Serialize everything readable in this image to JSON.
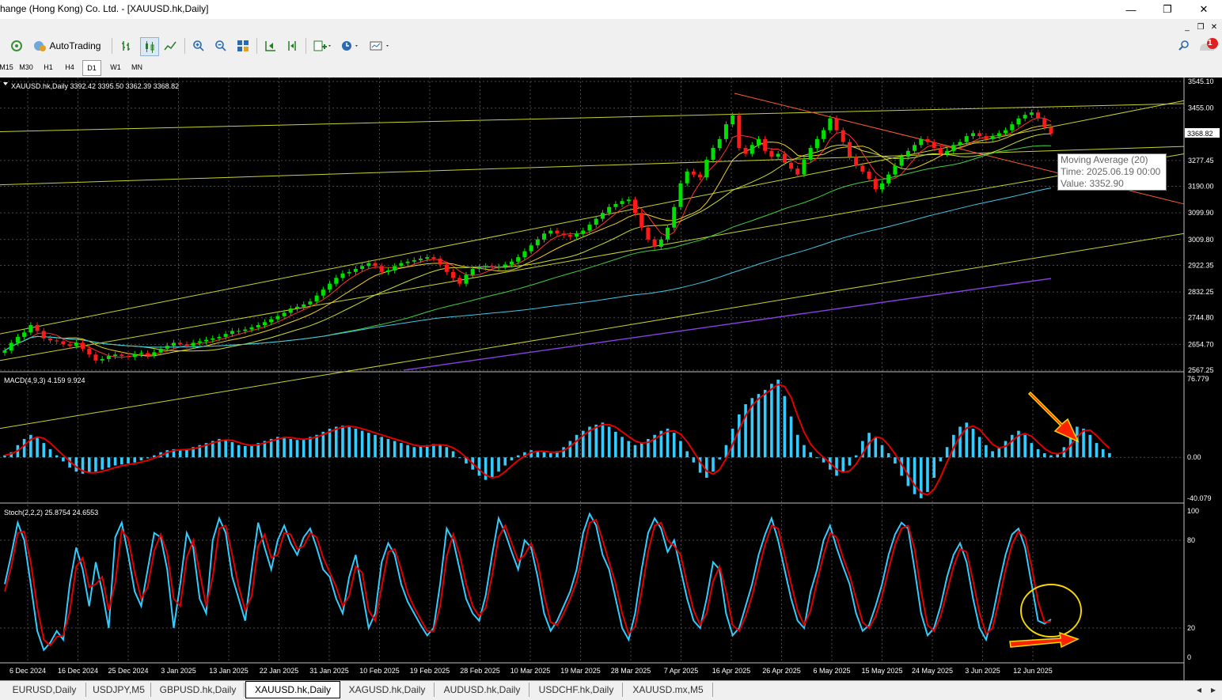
{
  "window": {
    "title": "hange (Hong Kong) Co. Ltd. - [XAUUSD.hk,Daily]",
    "minimize": "—",
    "maximize": "❐",
    "close": "✕",
    "mdi_minimize": "_",
    "mdi_restore": "❐",
    "mdi_close": "✕",
    "notification_count": "1"
  },
  "toolbar": {
    "autotrading_label": "AutoTrading"
  },
  "timeframes": [
    "M15",
    "M30",
    "H1",
    "H4",
    "D1",
    "W1",
    "MN"
  ],
  "active_timeframe": "D1",
  "main_chart": {
    "header": "XAUUSD.hk,Daily  3392.42 3395.50 3362.39 3368.82",
    "current_price": "3368.82",
    "price_axis": [
      "3545.10",
      "3455.00",
      "3277.45",
      "3190.00",
      "3099.90",
      "3009.80",
      "2922.35",
      "2832.25",
      "2744.80",
      "2654.70",
      "2567.25"
    ]
  },
  "tooltip": {
    "line1": "Moving Average (20)",
    "line2": "Time: 2025.06.19 00:00",
    "line3": "Value: 3352.90"
  },
  "macd": {
    "header": "MACD(4,9,3) 4.159 9.924",
    "axis": [
      "76.779",
      "0.00",
      "-40.079"
    ]
  },
  "stoch": {
    "header": "Stoch(2,2,2) 25.8754 24.6553",
    "axis": [
      "100",
      "80",
      "20",
      "0"
    ]
  },
  "date_axis": [
    "6 Dec 2024",
    "16 Dec 2024",
    "25 Dec 2024",
    "3 Jan 2025",
    "13 Jan 2025",
    "22 Jan 2025",
    "31 Jan 2025",
    "10 Feb 2025",
    "19 Feb 2025",
    "28 Feb 2025",
    "10 Mar 2025",
    "19 Mar 2025",
    "28 Mar 2025",
    "7 Apr 2025",
    "16 Apr 2025",
    "26 Apr 2025",
    "6 May 2025",
    "15 May 2025",
    "24 May 2025",
    "3 Jun 2025",
    "12 Jun 2025"
  ],
  "tabs": [
    "EURUSD,Daily",
    "USDJPY,M5",
    "GBPUSD.hk,Daily",
    "XAUUSD.hk,Daily",
    "XAGUSD.hk,Daily",
    "AUDUSD.hk,Daily",
    "USDCHF.hk,Daily",
    "XAUUSD.mx,M5"
  ],
  "active_tab": "XAUUSD.hk,Daily",
  "colors": {
    "background": "#000000",
    "bull_candle": "#00e000",
    "bear_candle": "#ff1a1a",
    "macd_hist": "#33ccff",
    "macd_signal": "#e00000",
    "stoch_main": "#33ccff",
    "stoch_signal": "#e00000",
    "annotation_arrow": "#ff2200",
    "annotation_circle": "#f5d800"
  },
  "chart_data": [
    {
      "type": "candlestick",
      "title": "XAUUSD.hk,Daily",
      "ohlc_last": {
        "open": 3392.42,
        "high": 3395.5,
        "low": 3362.39,
        "close": 3368.82
      },
      "ylim": [
        2567.25,
        3545.1
      ],
      "x_range": [
        "6 Dec 2024",
        "19 Jun 2025"
      ],
      "close": [
        2634,
        2660,
        2680,
        2695,
        2720,
        2700,
        2675,
        2668,
        2665,
        2655,
        2650,
        2660,
        2640,
        2620,
        2600,
        2605,
        2615,
        2620,
        2615,
        2612,
        2622,
        2625,
        2618,
        2628,
        2640,
        2650,
        2660,
        2655,
        2650,
        2660,
        2665,
        2670,
        2675,
        2680,
        2690,
        2700,
        2700,
        2705,
        2712,
        2720,
        2730,
        2740,
        2750,
        2762,
        2776,
        2782,
        2790,
        2800,
        2820,
        2840,
        2860,
        2880,
        2895,
        2900,
        2910,
        2920,
        2930,
        2920,
        2900,
        2905,
        2920,
        2930,
        2935,
        2940,
        2945,
        2950,
        2945,
        2925,
        2900,
        2880,
        2860,
        2890,
        2910,
        2915,
        2920,
        2915,
        2918,
        2925,
        2935,
        2950,
        2970,
        2990,
        3010,
        3030,
        3040,
        3030,
        3025,
        3020,
        3030,
        3040,
        3060,
        3080,
        3100,
        3120,
        3130,
        3140,
        3145,
        3100,
        3050,
        3010,
        2985,
        3010,
        3050,
        3120,
        3200,
        3240,
        3230,
        3220,
        3280,
        3320,
        3350,
        3400,
        3430,
        3320,
        3300,
        3330,
        3350,
        3310,
        3290,
        3300,
        3270,
        3250,
        3230,
        3280,
        3320,
        3350,
        3380,
        3420,
        3380,
        3340,
        3290,
        3260,
        3240,
        3215,
        3180,
        3200,
        3230,
        3260,
        3290,
        3310,
        3330,
        3350,
        3340,
        3320,
        3300,
        3310,
        3330,
        3340,
        3360,
        3370,
        3360,
        3350,
        3360,
        3370,
        3380,
        3400,
        3420,
        3432,
        3440,
        3420,
        3390,
        3368.82
      ],
      "moving_averages": [
        {
          "name": "Moving Average (20)",
          "last_value": 3352.9
        }
      ]
    },
    {
      "type": "bar",
      "title": "MACD(4,9,3) 4.159 9.924",
      "ylim": [
        -40.079,
        76.779
      ],
      "values": [
        2,
        5,
        12,
        18,
        22,
        20,
        14,
        8,
        2,
        -4,
        -10,
        -14,
        -16,
        -15,
        -14,
        -12,
        -10,
        -8,
        -7,
        -6,
        -5,
        -3,
        -1,
        2,
        5,
        7,
        8,
        7,
        8,
        10,
        12,
        14,
        16,
        18,
        17,
        15,
        12,
        11,
        12,
        14,
        16,
        18,
        20,
        20,
        18,
        17,
        18,
        20,
        22,
        25,
        28,
        30,
        31,
        30,
        28,
        26,
        24,
        22,
        20,
        18,
        16,
        14,
        12,
        10,
        11,
        12,
        13,
        12,
        10,
        6,
        0,
        -6,
        -12,
        -18,
        -22,
        -20,
        -14,
        -8,
        -3,
        2,
        5,
        7,
        6,
        5,
        4,
        6,
        10,
        16,
        22,
        26,
        30,
        32,
        34,
        30,
        25,
        20,
        16,
        12,
        14,
        18,
        22,
        26,
        28,
        24,
        16,
        6,
        -5,
        -15,
        -20,
        -14,
        -2,
        12,
        28,
        42,
        52,
        58,
        62,
        66,
        72,
        76,
        60,
        40,
        22,
        12,
        5,
        0,
        -5,
        -12,
        -18,
        -14,
        -8,
        2,
        16,
        24,
        20,
        12,
        4,
        -6,
        -18,
        -28,
        -36,
        -40,
        -34,
        -20,
        -4,
        10,
        22,
        30,
        34,
        28,
        20,
        12,
        6,
        10,
        16,
        22,
        26,
        22,
        14,
        8,
        4,
        2,
        4,
        10,
        20,
        30,
        28,
        22,
        14,
        8,
        4.159
      ],
      "signal_last": 9.924
    },
    {
      "type": "line",
      "title": "Stoch(2,2,2) 25.8754 24.6553",
      "ylim": [
        0,
        100
      ],
      "series": [
        {
          "name": "main",
          "values": [
            50,
            70,
            92,
            80,
            50,
            18,
            5,
            10,
            18,
            12,
            50,
            75,
            60,
            35,
            65,
            45,
            20,
            82,
            92,
            70,
            45,
            35,
            60,
            85,
            82,
            60,
            20,
            50,
            85,
            75,
            40,
            30,
            80,
            95,
            85,
            55,
            40,
            25,
            60,
            92,
            75,
            60,
            80,
            90,
            78,
            70,
            82,
            88,
            75,
            60,
            55,
            40,
            30,
            55,
            70,
            45,
            20,
            30,
            65,
            78,
            70,
            50,
            38,
            30,
            22,
            15,
            20,
            50,
            88,
            80,
            60,
            40,
            30,
            25,
            42,
            70,
            95,
            85,
            72,
            60,
            80,
            75,
            55,
            30,
            18,
            25,
            35,
            45,
            60,
            85,
            98,
            90,
            70,
            60,
            40,
            20,
            12,
            30,
            60,
            85,
            95,
            88,
            72,
            80,
            60,
            40,
            25,
            20,
            40,
            65,
            60,
            30,
            15,
            20,
            35,
            50,
            70,
            84,
            95,
            80,
            60,
            40,
            25,
            20,
            45,
            60,
            80,
            90,
            75,
            62,
            50,
            30,
            18,
            22,
            35,
            50,
            70,
            84,
            92,
            88,
            60,
            30,
            15,
            20,
            35,
            55,
            70,
            78,
            65,
            40,
            20,
            12,
            28,
            50,
            70,
            84,
            88,
            75,
            50,
            25,
            23,
            25.8754
          ]
        },
        {
          "name": "signal",
          "values": [
            45,
            62,
            85,
            86,
            65,
            34,
            12,
            8,
            14,
            15,
            31,
            62,
            68,
            48,
            50,
            55,
            32,
            51,
            87,
            81,
            58,
            40,
            48,
            73,
            84,
            71,
            40,
            35,
            68,
            80,
            58,
            35,
            55,
            88,
            90,
            70,
            48,
            32,
            42,
            76,
            84,
            68,
            70,
            85,
            84,
            74,
            76,
            85,
            82,
            68,
            58,
            48,
            35,
            42,
            62,
            58,
            32,
            25,
            48,
            72,
            74,
            60,
            44,
            34,
            26,
            18,
            18,
            35,
            69,
            84,
            70,
            50,
            35,
            28,
            34,
            56,
            82,
            90,
            78,
            66,
            70,
            78,
            65,
            42,
            24,
            22,
            30,
            40,
            52,
            72,
            92,
            94,
            80,
            65,
            50,
            30,
            16,
            21,
            45,
            72,
            90,
            92,
            80,
            76,
            70,
            50,
            32,
            22,
            30,
            52,
            62,
            45,
            22,
            18,
            28,
            42,
            60,
            77,
            90,
            88,
            70,
            50,
            32,
            22,
            32,
            52,
            70,
            85,
            82,
            68,
            56,
            40,
            24,
            20,
            28,
            42,
            60,
            77,
            88,
            90,
            74,
            45,
            22,
            18,
            28,
            45,
            62,
            74,
            72,
            52,
            30,
            16,
            20,
            39,
            60,
            77,
            86,
            82,
            62,
            38,
            24,
            24.6553
          ]
        }
      ]
    }
  ]
}
